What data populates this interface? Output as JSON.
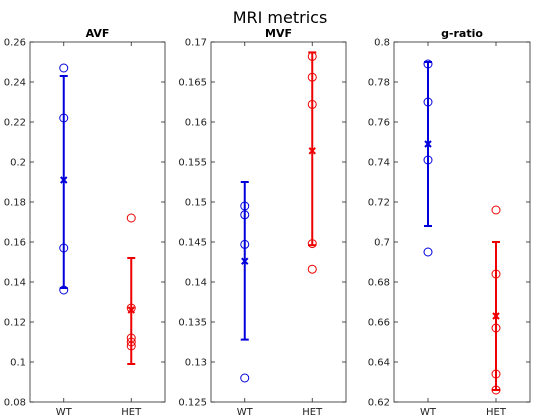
{
  "figure": {
    "title": "MRI metrics"
  },
  "colors": {
    "WT": "#0000dd",
    "HET": "#ee0000"
  },
  "chart_data": [
    {
      "type": "scatter",
      "title": "AVF",
      "categories": [
        "WT",
        "HET"
      ],
      "ylim": [
        0.08,
        0.26
      ],
      "yticks": [
        0.08,
        0.1,
        0.12,
        0.14,
        0.16,
        0.18,
        0.2,
        0.22,
        0.24,
        0.26
      ],
      "yticklabels": [
        "0.08",
        "0.1",
        "0.12",
        "0.14",
        "0.16",
        "0.18",
        "0.2",
        "0.22",
        "0.24",
        "0.26"
      ],
      "series": [
        {
          "category": "WT",
          "color": "#0000dd",
          "points": [
            0.247,
            0.222,
            0.157,
            0.136
          ],
          "mean": 0.191,
          "err_low": 0.137,
          "err_high": 0.243
        },
        {
          "category": "HET",
          "color": "#ee0000",
          "points": [
            0.172,
            0.127,
            0.112,
            0.11,
            0.108
          ],
          "mean": 0.126,
          "err_low": 0.099,
          "err_high": 0.152
        }
      ]
    },
    {
      "type": "scatter",
      "title": "MVF",
      "categories": [
        "WT",
        "HET"
      ],
      "ylim": [
        0.125,
        0.17
      ],
      "yticks": [
        0.125,
        0.13,
        0.135,
        0.14,
        0.145,
        0.15,
        0.155,
        0.16,
        0.165,
        0.17
      ],
      "yticklabels": [
        "0.125",
        "0.13",
        "0.135",
        "0.14",
        "0.145",
        "0.15",
        "0.155",
        "0.16",
        "0.165",
        "0.17"
      ],
      "series": [
        {
          "category": "WT",
          "color": "#0000dd",
          "points": [
            0.1495,
            0.1484,
            0.1447,
            0.128
          ],
          "mean": 0.1426,
          "err_low": 0.1328,
          "err_high": 0.1525
        },
        {
          "category": "HET",
          "color": "#ee0000",
          "points": [
            0.1682,
            0.1656,
            0.1622,
            0.1448,
            0.1416
          ],
          "mean": 0.1564,
          "err_low": 0.1446,
          "err_high": 0.1687
        }
      ]
    },
    {
      "type": "scatter",
      "title": "g-ratio",
      "categories": [
        "WT",
        "HET"
      ],
      "ylim": [
        0.62,
        0.8
      ],
      "yticks": [
        0.62,
        0.64,
        0.66,
        0.68,
        0.7,
        0.72,
        0.74,
        0.76,
        0.78,
        0.8
      ],
      "yticklabels": [
        "0.62",
        "0.64",
        "0.66",
        "0.68",
        "0.7",
        "0.72",
        "0.74",
        "0.76",
        "0.78",
        "0.8"
      ],
      "series": [
        {
          "category": "WT",
          "color": "#0000dd",
          "points": [
            0.789,
            0.77,
            0.741,
            0.695
          ],
          "mean": 0.749,
          "err_low": 0.708,
          "err_high": 0.79
        },
        {
          "category": "HET",
          "color": "#ee0000",
          "points": [
            0.716,
            0.684,
            0.657,
            0.634,
            0.626
          ],
          "mean": 0.663,
          "err_low": 0.626,
          "err_high": 0.7
        }
      ]
    }
  ]
}
